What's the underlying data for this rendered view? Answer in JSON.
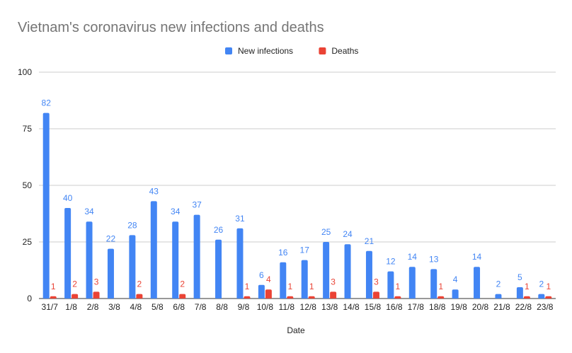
{
  "chart_data": {
    "type": "bar",
    "title": "Vietnam's coronavirus new infections and deaths",
    "xlabel": "Date",
    "ylabel": "",
    "ylim": [
      0,
      100
    ],
    "yticks": [
      0,
      25,
      50,
      75,
      100
    ],
    "grid": true,
    "legend_position": "top-center",
    "categories": [
      "31/7",
      "1/8",
      "2/8",
      "3/8",
      "4/8",
      "5/8",
      "6/8",
      "7/8",
      "8/8",
      "9/8",
      "10/8",
      "11/8",
      "12/8",
      "13/8",
      "14/8",
      "15/8",
      "16/8",
      "17/8",
      "18/8",
      "19/8",
      "20/8",
      "21/8",
      "22/8",
      "23/8"
    ],
    "series": [
      {
        "name": "New infections",
        "color": "#4285f4",
        "values": [
          82,
          40,
          34,
          22,
          28,
          43,
          34,
          37,
          26,
          31,
          6,
          16,
          17,
          25,
          24,
          21,
          12,
          14,
          13,
          4,
          14,
          2,
          5,
          2
        ]
      },
      {
        "name": "Deaths",
        "color": "#ea4335",
        "values": [
          1,
          2,
          3,
          0,
          2,
          0,
          2,
          0,
          0,
          1,
          4,
          1,
          1,
          3,
          0,
          3,
          1,
          0,
          1,
          0,
          0,
          0,
          1,
          1
        ]
      }
    ]
  }
}
